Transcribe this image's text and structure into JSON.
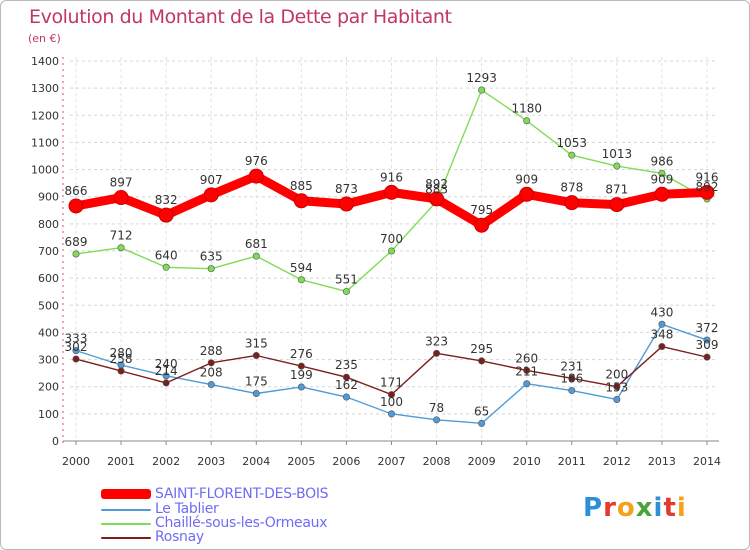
{
  "title": "Evolution du Montant de la Dette par Habitant",
  "unit_label": "(en €)",
  "logo": {
    "text": "Proxiti",
    "letters": [
      {
        "ch": "P",
        "color": "#2f8fd6"
      },
      {
        "ch": "r",
        "color": "#e23b2e"
      },
      {
        "ch": "o",
        "color": "#f4a21b"
      },
      {
        "ch": "x",
        "color": "#4aa23c"
      },
      {
        "ch": "i",
        "color": "#2f8fd6"
      },
      {
        "ch": "t",
        "color": "#e23b2e"
      },
      {
        "ch": "i",
        "color": "#f4a21b"
      }
    ]
  },
  "chart_data": {
    "type": "line",
    "title": "Evolution du Montant de la Dette par Habitant",
    "ylabel": "(en €)",
    "xlabel": "",
    "ylim": [
      0,
      1400
    ],
    "yticks": [
      "0",
      "100",
      "200",
      "300",
      "400",
      "500",
      "600",
      "700",
      "800",
      "900",
      "1000",
      "1100",
      "1200",
      "1300",
      "1400"
    ],
    "categories": [
      "2000",
      "2001",
      "2002",
      "2003",
      "2004",
      "2005",
      "2006",
      "2007",
      "2008",
      "2009",
      "2010",
      "2011",
      "2012",
      "2013",
      "2014"
    ],
    "grid": "horizontal dashed",
    "legend_position": "bottom-left",
    "series": [
      {
        "name": "SAINT-FLORENT-DES-BOIS",
        "color": "#ff0000",
        "values": [
          866,
          897,
          832,
          907,
          976,
          885,
          873,
          916,
          892,
          795,
          909,
          878,
          871,
          909,
          916
        ]
      },
      {
        "name": "Le Tablier",
        "color": "#4f9bd8",
        "values": [
          333,
          280,
          240,
          208,
          175,
          199,
          162,
          100,
          78,
          65,
          211,
          186,
          153,
          430,
          372
        ]
      },
      {
        "name": "Chaillé-sous-les-Ormeaux",
        "color": "#7fdc55",
        "values": [
          689,
          712,
          640,
          635,
          681,
          594,
          551,
          700,
          883,
          1293,
          1180,
          1053,
          1013,
          986,
          892
        ]
      },
      {
        "name": "Rosnay",
        "color": "#7a1e1e",
        "values": [
          302,
          258,
          214,
          288,
          315,
          276,
          235,
          171,
          323,
          295,
          260,
          231,
          200,
          348,
          309
        ]
      }
    ]
  }
}
